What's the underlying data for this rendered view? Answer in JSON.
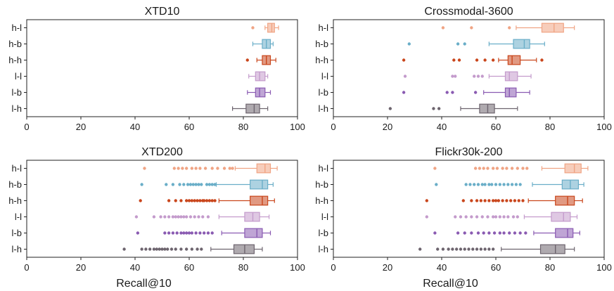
{
  "chart_data": [
    {
      "type": "box",
      "title": "XTD10",
      "xlabel": "",
      "categories": [
        "h-l",
        "h-b",
        "h-h",
        "l-l",
        "l-b",
        "l-h"
      ],
      "xlim": [
        0,
        100
      ],
      "xticks": [
        "0",
        "20",
        "40",
        "60",
        "80",
        "100"
      ],
      "colors": [
        "#f0a484",
        "#6aaec8",
        "#c9461c",
        "#c49bcc",
        "#8a5bb2",
        "#6d646e"
      ],
      "boxes": [
        {
          "whislo": 88,
          "q1": 89,
          "med": 90.5,
          "q3": 91.5,
          "whishi": 93,
          "fliers": [
            83.5
          ]
        },
        {
          "whislo": 83.5,
          "q1": 87,
          "med": 88.5,
          "q3": 90,
          "whishi": 91,
          "fliers": []
        },
        {
          "whislo": 85,
          "q1": 87,
          "med": 88.5,
          "q3": 90,
          "whishi": 92,
          "fliers": [
            81.5
          ]
        },
        {
          "whislo": 82,
          "q1": 84.5,
          "med": 86,
          "q3": 88,
          "whishi": 89,
          "fliers": []
        },
        {
          "whislo": 81.5,
          "q1": 84.5,
          "med": 86,
          "q3": 88,
          "whishi": 90,
          "fliers": []
        },
        {
          "whislo": 76,
          "q1": 81,
          "med": 84,
          "q3": 86,
          "whishi": 89,
          "fliers": []
        }
      ]
    },
    {
      "type": "box",
      "title": "Crossmodal-3600",
      "xlabel": "",
      "categories": [
        "h-l",
        "h-b",
        "h-h",
        "l-l",
        "l-b",
        "l-h"
      ],
      "xlim": [
        0,
        100
      ],
      "xticks": [
        "0",
        "20",
        "40",
        "60",
        "80",
        "100"
      ],
      "colors": [
        "#f0a484",
        "#6aaec8",
        "#c9461c",
        "#c49bcc",
        "#8a5bb2",
        "#6d646e"
      ],
      "boxes": [
        {
          "whislo": 67.5,
          "q1": 77,
          "med": 81.5,
          "q3": 85,
          "whishi": 89,
          "fliers": [
            40.5,
            51,
            65
          ]
        },
        {
          "whislo": 57.5,
          "q1": 66.5,
          "med": 70.5,
          "q3": 72.5,
          "whishi": 78,
          "fliers": [
            28,
            46,
            48.5
          ]
        },
        {
          "whislo": 61,
          "q1": 64.5,
          "med": 66,
          "q3": 69,
          "whishi": 75,
          "fliers": [
            26,
            44.5,
            46.5,
            53,
            56,
            59,
            77
          ]
        },
        {
          "whislo": 57.5,
          "q1": 63.5,
          "med": 65,
          "q3": 68,
          "whishi": 73,
          "fliers": [
            26.5,
            44,
            45,
            52,
            53.5,
            55
          ]
        },
        {
          "whislo": 55.5,
          "q1": 63.5,
          "med": 65,
          "q3": 67.5,
          "whishi": 72.5,
          "fliers": [
            26,
            42,
            44,
            52.5
          ]
        },
        {
          "whislo": 47,
          "q1": 54,
          "med": 57,
          "q3": 59.5,
          "whishi": 68,
          "fliers": [
            21,
            37,
            39
          ]
        }
      ]
    },
    {
      "type": "box",
      "title": "XTD200",
      "xlabel": "Recall@10",
      "categories": [
        "h-l",
        "h-b",
        "h-h",
        "l-l",
        "l-b",
        "l-h"
      ],
      "xlim": [
        0,
        100
      ],
      "xticks": [
        "0",
        "20",
        "40",
        "60",
        "80",
        "100"
      ],
      "colors": [
        "#f0a484",
        "#6aaec8",
        "#c9461c",
        "#c49bcc",
        "#8a5bb2",
        "#6d646e"
      ],
      "boxes": [
        {
          "whislo": 77,
          "q1": 85,
          "med": 88,
          "q3": 90,
          "whishi": 92.5,
          "fliers": [
            43.5,
            54.5,
            56,
            57.5,
            59,
            61,
            62.5,
            64,
            66,
            68.5,
            70.5,
            73,
            75,
            76
          ]
        },
        {
          "whislo": 70,
          "q1": 82.5,
          "med": 87,
          "q3": 89,
          "whishi": 91,
          "fliers": [
            42.5,
            51.5,
            54,
            56.5,
            58,
            59.5,
            60.5,
            61.5,
            62.5,
            63.5,
            64.5,
            66.5,
            67.5,
            68.5,
            69.5
          ]
        },
        {
          "whislo": 71,
          "q1": 82.5,
          "med": 87,
          "q3": 89,
          "whishi": 91.5,
          "fliers": [
            42,
            52.5,
            55,
            57,
            59,
            60,
            61,
            62,
            63,
            64,
            65,
            65.5,
            66.5,
            67.5,
            68.5,
            69.5
          ]
        },
        {
          "whislo": 71,
          "q1": 80.5,
          "med": 83.5,
          "q3": 86,
          "whishi": 89.5,
          "fliers": [
            40.5,
            47,
            49.5,
            51,
            52.5,
            54,
            55,
            56,
            57,
            58,
            59,
            60.5,
            62,
            63.5,
            65,
            67
          ]
        },
        {
          "whislo": 72,
          "q1": 80.5,
          "med": 85,
          "q3": 87,
          "whishi": 90,
          "fliers": [
            41,
            51,
            52.5,
            54,
            55.5,
            57,
            58,
            59,
            60,
            61,
            62.5,
            64,
            65.5,
            67,
            68.5
          ]
        },
        {
          "whislo": 68,
          "q1": 76.5,
          "med": 80.5,
          "q3": 84,
          "whishi": 87,
          "fliers": [
            36,
            42.5,
            44,
            45.5,
            47,
            48,
            49,
            50,
            51,
            52,
            53.5,
            55,
            57,
            59,
            61,
            63,
            64.5
          ]
        }
      ]
    },
    {
      "type": "box",
      "title": "Flickr30k-200",
      "xlabel": "Recall@10",
      "categories": [
        "h-l",
        "h-b",
        "h-h",
        "l-l",
        "l-b",
        "l-h"
      ],
      "xlim": [
        0,
        100
      ],
      "xticks": [
        "0",
        "20",
        "40",
        "60",
        "80",
        "100"
      ],
      "colors": [
        "#f0a484",
        "#6aaec8",
        "#c9461c",
        "#c49bcc",
        "#8a5bb2",
        "#6d646e"
      ],
      "boxes": [
        {
          "whislo": 77,
          "q1": 85.5,
          "med": 89,
          "q3": 91.5,
          "whishi": 94,
          "fliers": [
            37.5,
            52.5,
            54,
            55.5,
            57,
            59,
            60.5,
            62.5,
            64,
            66,
            68,
            70,
            71.5
          ]
        },
        {
          "whislo": 73.5,
          "q1": 84.5,
          "med": 87.5,
          "q3": 90.5,
          "whishi": 92.5,
          "fliers": [
            38,
            49,
            50.5,
            52,
            53.5,
            55,
            56,
            57.5,
            58.5,
            60,
            61.5,
            63,
            64.5,
            66,
            67.5,
            69
          ]
        },
        {
          "whislo": 72,
          "q1": 82,
          "med": 86.5,
          "q3": 89,
          "whishi": 92,
          "fliers": [
            34.5,
            48,
            51,
            53,
            54.5,
            56,
            57.5,
            59,
            60,
            61,
            62.5,
            64,
            65.5,
            67,
            68.5,
            70
          ]
        },
        {
          "whislo": 70.5,
          "q1": 80.5,
          "med": 85,
          "q3": 87.5,
          "whishi": 90,
          "fliers": [
            34.5,
            45,
            47,
            49,
            51,
            53,
            55,
            57,
            59,
            60,
            61.5,
            63,
            64.5,
            66.5,
            68
          ]
        },
        {
          "whislo": 74,
          "q1": 82,
          "med": 86.5,
          "q3": 88.5,
          "whishi": 91,
          "fliers": [
            37.5,
            46,
            48.5,
            51,
            53.5,
            55.5,
            57.5,
            59.5,
            61.5,
            63,
            65,
            67,
            69,
            71
          ]
        },
        {
          "whislo": 62,
          "q1": 76.5,
          "med": 82,
          "q3": 85.5,
          "whishi": 89,
          "fliers": [
            32,
            38.5,
            40.5,
            42.5,
            44,
            45.5,
            47,
            48.5,
            50,
            51.5,
            53,
            54.5,
            56,
            57.5,
            59
          ]
        }
      ]
    }
  ]
}
